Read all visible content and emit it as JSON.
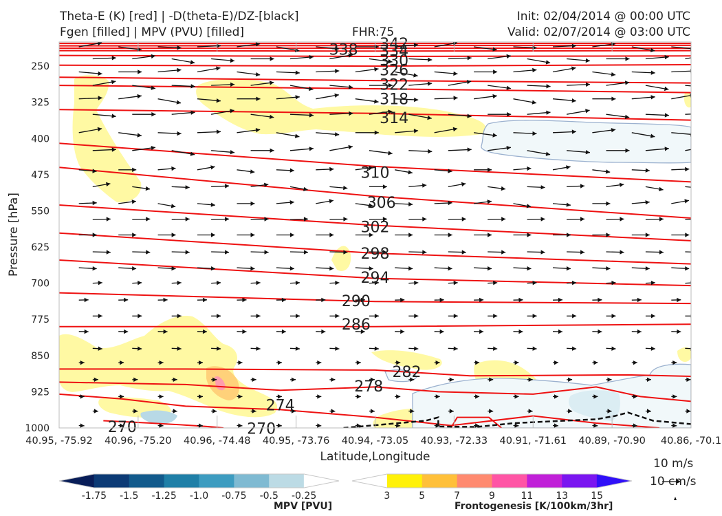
{
  "header": {
    "title_line1": "Theta-E (K) [red] | -D(theta-E)/DZ-[black]",
    "title_line2": "Fgen [filled] | MPV (PVU) [filled]",
    "fhr": "FHR:75",
    "init": "Init: 02/04/2014 @ 00:00 UTC",
    "valid": "Valid: 02/07/2014 @ 03:00 UTC"
  },
  "chart_data": {
    "type": "cross-section",
    "xlabel": "Latitude,Longitude",
    "ylabel": "Pressure [hPa]",
    "ylim": [
      1000,
      200
    ],
    "yscale": "linear-inverted",
    "yticks": [
      250,
      325,
      400,
      475,
      550,
      625,
      700,
      775,
      850,
      925,
      1000
    ],
    "xticks": [
      "40.95, -75.92",
      "40.96, -75.20",
      "40.96, -74.48",
      "40.95, -73.76",
      "40.94, -73.05",
      "40.93, -72.33",
      "40.91, -71.61",
      "40.89, -70.90",
      "40.86, -70.1"
    ],
    "theta_e_labels": [
      {
        "text": "342",
        "x": 0.53,
        "p": 203
      },
      {
        "text": "338",
        "x": 0.45,
        "p": 215
      },
      {
        "text": "334",
        "x": 0.53,
        "p": 218
      },
      {
        "text": "330",
        "x": 0.53,
        "p": 238
      },
      {
        "text": "326",
        "x": 0.53,
        "p": 258
      },
      {
        "text": "322",
        "x": 0.53,
        "p": 288
      },
      {
        "text": "318",
        "x": 0.53,
        "p": 318
      },
      {
        "text": "314",
        "x": 0.53,
        "p": 357
      },
      {
        "text": "310",
        "x": 0.5,
        "p": 470
      },
      {
        "text": "306",
        "x": 0.51,
        "p": 532
      },
      {
        "text": "302",
        "x": 0.5,
        "p": 583
      },
      {
        "text": "298",
        "x": 0.5,
        "p": 638
      },
      {
        "text": "294",
        "x": 0.5,
        "p": 688
      },
      {
        "text": "290",
        "x": 0.47,
        "p": 736
      },
      {
        "text": "286",
        "x": 0.47,
        "p": 785
      },
      {
        "text": "282",
        "x": 0.55,
        "p": 883
      },
      {
        "text": "278",
        "x": 0.49,
        "p": 913
      },
      {
        "text": "274",
        "x": 0.35,
        "p": 952
      },
      {
        "text": "270",
        "x": 0.32,
        "p": 1001
      },
      {
        "text": "270",
        "x": 0.1,
        "p": 997
      }
    ],
    "theta_e_color": "#ee1111",
    "theta_e_label_color": "#f05a5a",
    "stability_contour_color": "#111111",
    "mpv_colorbar": {
      "label": "MPV [PVU]",
      "ticks": [
        "-1.75",
        "-1.5",
        "-1.25",
        "-1.0",
        "-0.75",
        "-0.5",
        "-0.25"
      ],
      "colors": [
        "#081d58",
        "#0c3a75",
        "#125a8c",
        "#1f7fa7",
        "#3d9cc0",
        "#7fbad2",
        "#bcdbe5",
        "#ffffff"
      ]
    },
    "fgen_colorbar": {
      "label": "Frontogenesis [K/100km/3hr]",
      "ticks": [
        "3",
        "5",
        "7",
        "9",
        "11",
        "13",
        "15"
      ],
      "colors": [
        "#ffffff",
        "#fff10a",
        "#ffc03a",
        "#ff8a70",
        "#ff55a5",
        "#c020d8",
        "#7a16f0",
        "#3010f8"
      ]
    },
    "vector_key": [
      "10 m/s",
      "10 cm/s"
    ]
  }
}
